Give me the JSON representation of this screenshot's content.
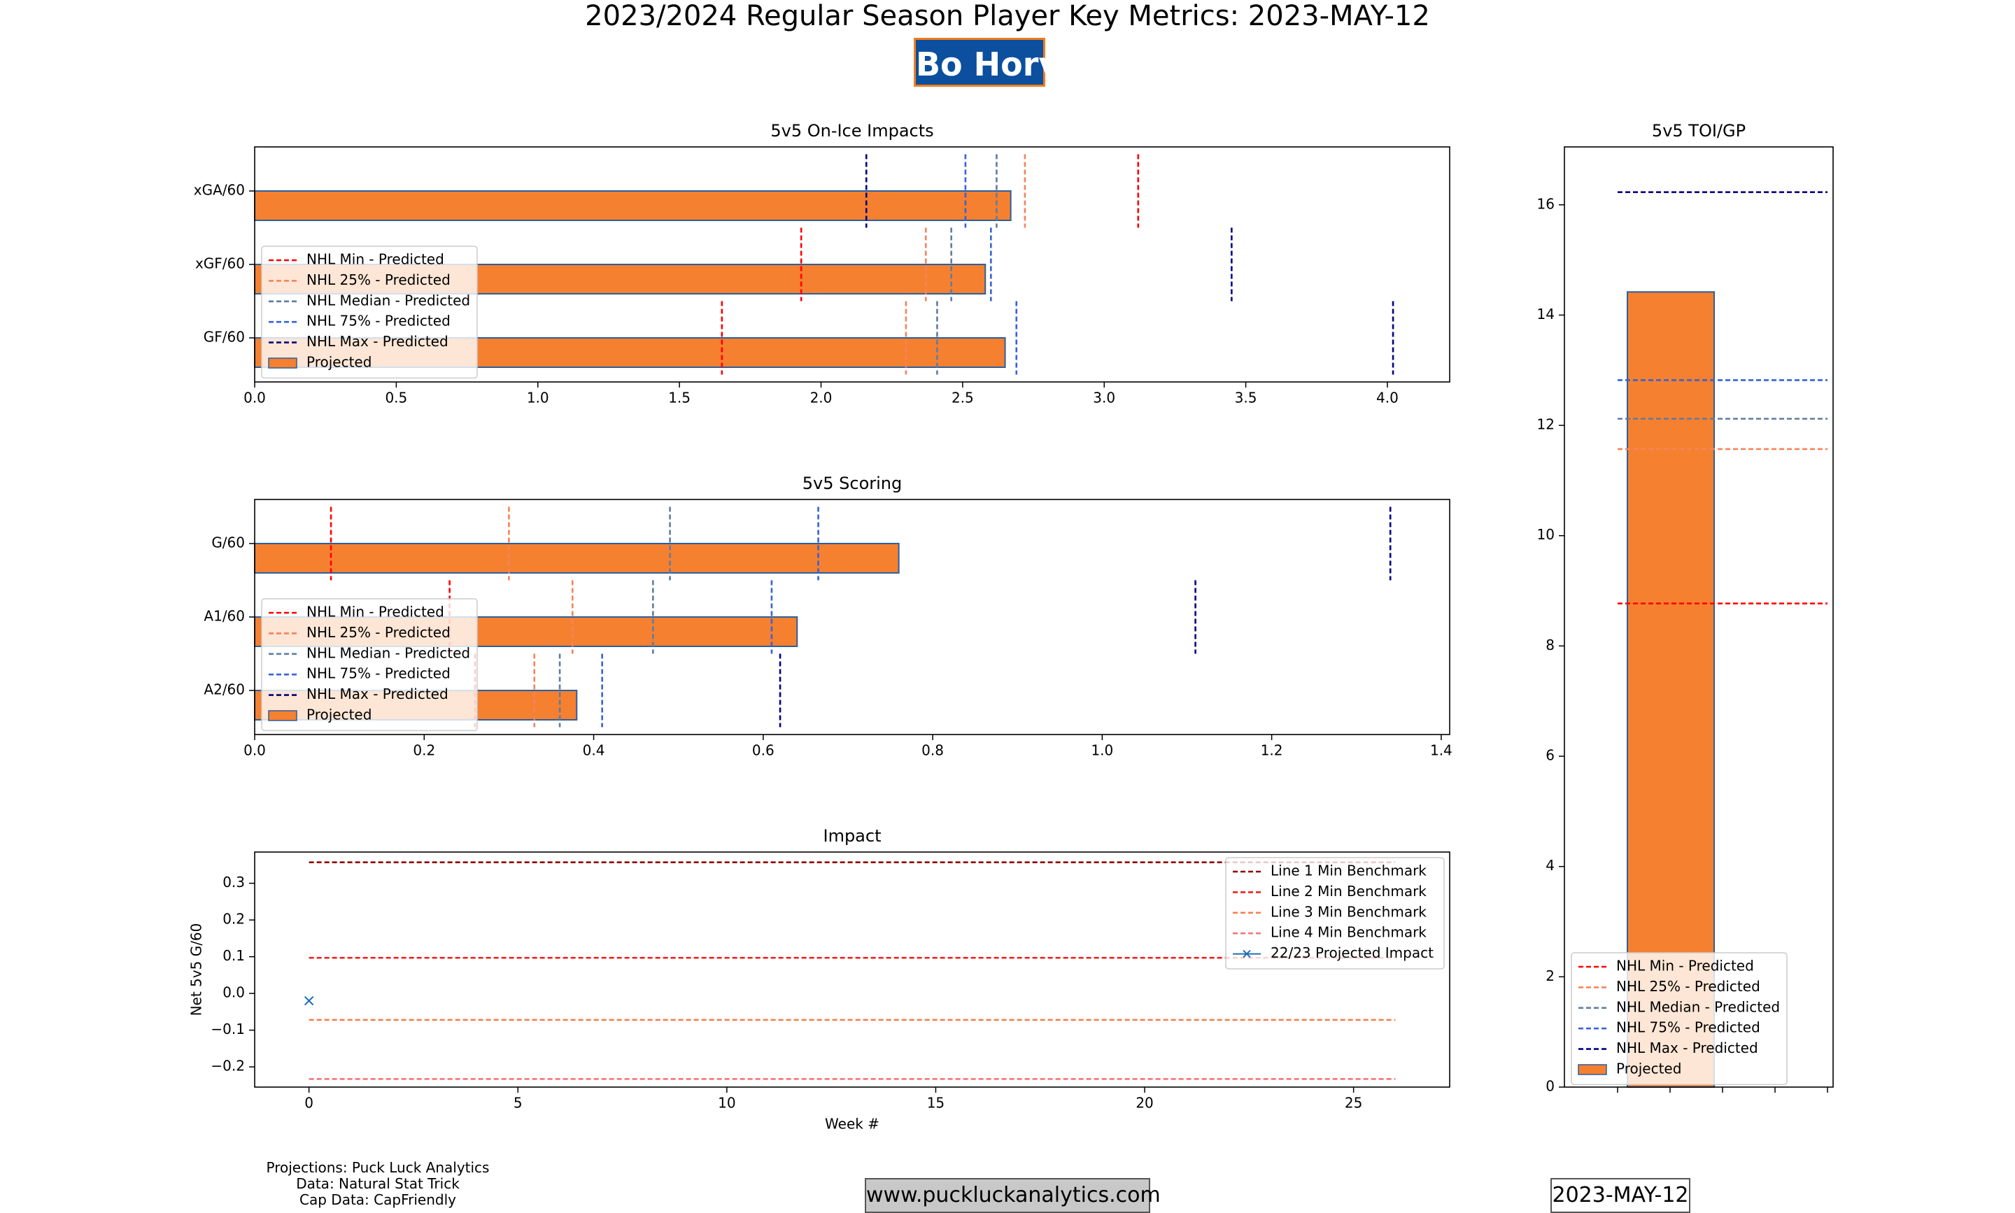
{
  "header": {
    "title": "2023/2024 Regular Season Player Key Metrics: 2023-MAY-12",
    "player": "Bo Horvat"
  },
  "footer": {
    "credits": [
      "Projections: Puck Luck Analytics",
      "Data: Natural Stat Trick",
      "Cap Data: CapFriendly"
    ],
    "website": "www.puckluckanalytics.com",
    "date": "2023-MAY-12"
  },
  "colors": {
    "bar_fill": "#f58030",
    "bar_edge": "#2c5f9e",
    "nhl_min": "#ff0000",
    "nhl_25": "#f4845a",
    "nhl_median": "#5f7ca0",
    "nhl_75": "#3563d6",
    "nhl_max": "#000080",
    "line1": "#8b0000",
    "line2": "#e8231f",
    "line3": "#f47f50",
    "line4": "#f4767a",
    "impact_marker": "#1f6fb4"
  },
  "chart_data": [
    {
      "id": "on-ice",
      "type": "bar",
      "orientation": "horizontal",
      "title": "5v5 On-Ice Impacts",
      "categories": [
        "xGA/60",
        "xGF/60",
        "GF/60"
      ],
      "projected": [
        2.67,
        2.58,
        2.65
      ],
      "benchmarks": [
        {
          "name": "NHL Min - Predicted",
          "key": "nhl_min",
          "values": [
            3.12,
            1.93,
            1.65
          ]
        },
        {
          "name": "NHL 25% - Predicted",
          "key": "nhl_25",
          "values": [
            2.72,
            2.37,
            2.3
          ]
        },
        {
          "name": "NHL Median - Predicted",
          "key": "nhl_median",
          "values": [
            2.62,
            2.46,
            2.41
          ]
        },
        {
          "name": "NHL 75% - Predicted",
          "key": "nhl_75",
          "values": [
            2.51,
            2.6,
            2.69
          ]
        },
        {
          "name": "NHL Max - Predicted",
          "key": "nhl_max",
          "values": [
            2.16,
            3.45,
            4.02
          ]
        }
      ],
      "bar_label": "Projected",
      "xlim": [
        0,
        4.22
      ],
      "xticks": [
        "0.0",
        "0.5",
        "1.0",
        "1.5",
        "2.0",
        "2.5",
        "3.0",
        "3.5",
        "4.0"
      ],
      "legend": "left"
    },
    {
      "id": "scoring",
      "type": "bar",
      "orientation": "horizontal",
      "title": "5v5 Scoring",
      "categories": [
        "G/60",
        "A1/60",
        "A2/60"
      ],
      "projected": [
        0.76,
        0.64,
        0.38
      ],
      "benchmarks": [
        {
          "name": "NHL Min - Predicted",
          "key": "nhl_min",
          "values": [
            0.09,
            0.23,
            0.26
          ]
        },
        {
          "name": "NHL 25% - Predicted",
          "key": "nhl_25",
          "values": [
            0.3,
            0.375,
            0.33
          ]
        },
        {
          "name": "NHL Median - Predicted",
          "key": "nhl_median",
          "values": [
            0.49,
            0.47,
            0.36
          ]
        },
        {
          "name": "NHL 75% - Predicted",
          "key": "nhl_75",
          "values": [
            0.665,
            0.61,
            0.41
          ]
        },
        {
          "name": "NHL Max - Predicted",
          "key": "nhl_max",
          "values": [
            1.34,
            1.11,
            0.62
          ]
        }
      ],
      "bar_label": "Projected",
      "xlim": [
        0,
        1.41
      ],
      "xticks": [
        "0.0",
        "0.2",
        "0.4",
        "0.6",
        "0.8",
        "1.0",
        "1.2",
        "1.4"
      ],
      "legend": "left"
    },
    {
      "id": "impact",
      "type": "line",
      "title": "Impact",
      "xlabel": "Week #",
      "ylabel": "Net 5v5 G/60",
      "xlim": [
        -1.3,
        27.3
      ],
      "ylim": [
        -0.255,
        0.385
      ],
      "xticks": [
        "0",
        "5",
        "10",
        "15",
        "20",
        "25"
      ],
      "yticks": [
        "0.3",
        "0.2",
        "0.1",
        "0.0",
        "−0.1",
        "−0.2"
      ],
      "benchmarks": [
        {
          "name": "Line 1 Min Benchmark",
          "key": "line1",
          "value": 0.357,
          "x": [
            0,
            26
          ]
        },
        {
          "name": "Line 2 Min Benchmark",
          "key": "line2",
          "value": 0.097,
          "x": [
            0,
            26
          ]
        },
        {
          "name": "Line 3 Min Benchmark",
          "key": "line3",
          "value": -0.072,
          "x": [
            0,
            26
          ]
        },
        {
          "name": "Line 4 Min Benchmark",
          "key": "line4",
          "value": -0.233,
          "x": [
            0,
            26
          ]
        }
      ],
      "series": [
        {
          "name": "22/23 Projected Impact",
          "x": [
            0
          ],
          "y": [
            -0.02
          ]
        }
      ],
      "legend": "top-right"
    },
    {
      "id": "toi",
      "type": "bar",
      "orientation": "vertical",
      "title": "5v5 TOI/GP",
      "projected": 14.42,
      "benchmarks": [
        {
          "name": "NHL Min - Predicted",
          "key": "nhl_min",
          "value": 8.77
        },
        {
          "name": "NHL 25% - Predicted",
          "key": "nhl_25",
          "value": 11.57
        },
        {
          "name": "NHL Median - Predicted",
          "key": "nhl_median",
          "value": 12.12
        },
        {
          "name": "NHL 75% - Predicted",
          "key": "nhl_75",
          "value": 12.82
        },
        {
          "name": "NHL Max - Predicted",
          "key": "nhl_max",
          "value": 16.23
        }
      ],
      "bar_label": "Projected",
      "ylim": [
        0,
        17.05
      ],
      "yticks": [
        "0",
        "2",
        "4",
        "6",
        "8",
        "10",
        "12",
        "14",
        "16"
      ],
      "legend": "bottom"
    }
  ]
}
